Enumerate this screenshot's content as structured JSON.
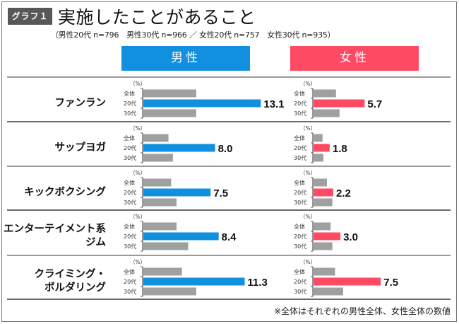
{
  "header": {
    "tag": "グラフ１",
    "title": "実施したことがあること",
    "subtitle": "（男性20代 n=796　男性30代 n=966 ／ 女性20代 n=757　女性30代 n=935）"
  },
  "legend": {
    "male": "男性",
    "female": "女性"
  },
  "footnote": "※全体はそれぞれの男性全体、女性全体の数値",
  "colors": {
    "male": "#1190e0",
    "female": "#ff4a63",
    "other": "#a0a0a0",
    "tag_bg": "#595757"
  },
  "chart_data": {
    "type": "bar",
    "orientation": "horizontal",
    "title": "実施したことがあること",
    "unit": "（%）",
    "row_labels": [
      "全体",
      "20代",
      "30代"
    ],
    "highlight_row": "20代",
    "panels": [
      "男性",
      "女性"
    ],
    "categories": [
      {
        "label": "ファンラン",
        "male": {
          "全体": 5.9,
          "20代": 13.1,
          "30代": 5.9
        },
        "female": {
          "全体": 2.5,
          "20代": 5.7,
          "30代": 2.9
        }
      },
      {
        "label": "サップヨガ",
        "male": {
          "全体": 2.8,
          "20代": 8.0,
          "30代": 3.3
        },
        "female": {
          "全体": 1.0,
          "20代": 1.8,
          "30代": 1.1
        }
      },
      {
        "label": "キックボクシング",
        "male": {
          "全体": 3.1,
          "20代": 7.5,
          "30代": 3.7
        },
        "female": {
          "全体": 1.5,
          "20代": 2.2,
          "30代": 2.1
        }
      },
      {
        "label": "エンターテイメント系\nジム",
        "male": {
          "全体": 3.7,
          "20代": 8.4,
          "30代": 5.0
        },
        "female": {
          "全体": 1.9,
          "20代": 3.0,
          "30代": 2.1
        }
      },
      {
        "label": "クライミング・\nボルダリング",
        "male": {
          "全体": 4.3,
          "20代": 11.3,
          "30代": 5.9
        },
        "female": {
          "全体": 2.4,
          "20代": 7.5,
          "30代": 3.3
        }
      }
    ],
    "labeled_values": {
      "male_20s": [
        "13.1",
        "8.0",
        "7.5",
        "8.4",
        "11.3"
      ],
      "female_20s": [
        "5.7",
        "1.8",
        "2.2",
        "3.0",
        "7.5"
      ]
    }
  }
}
